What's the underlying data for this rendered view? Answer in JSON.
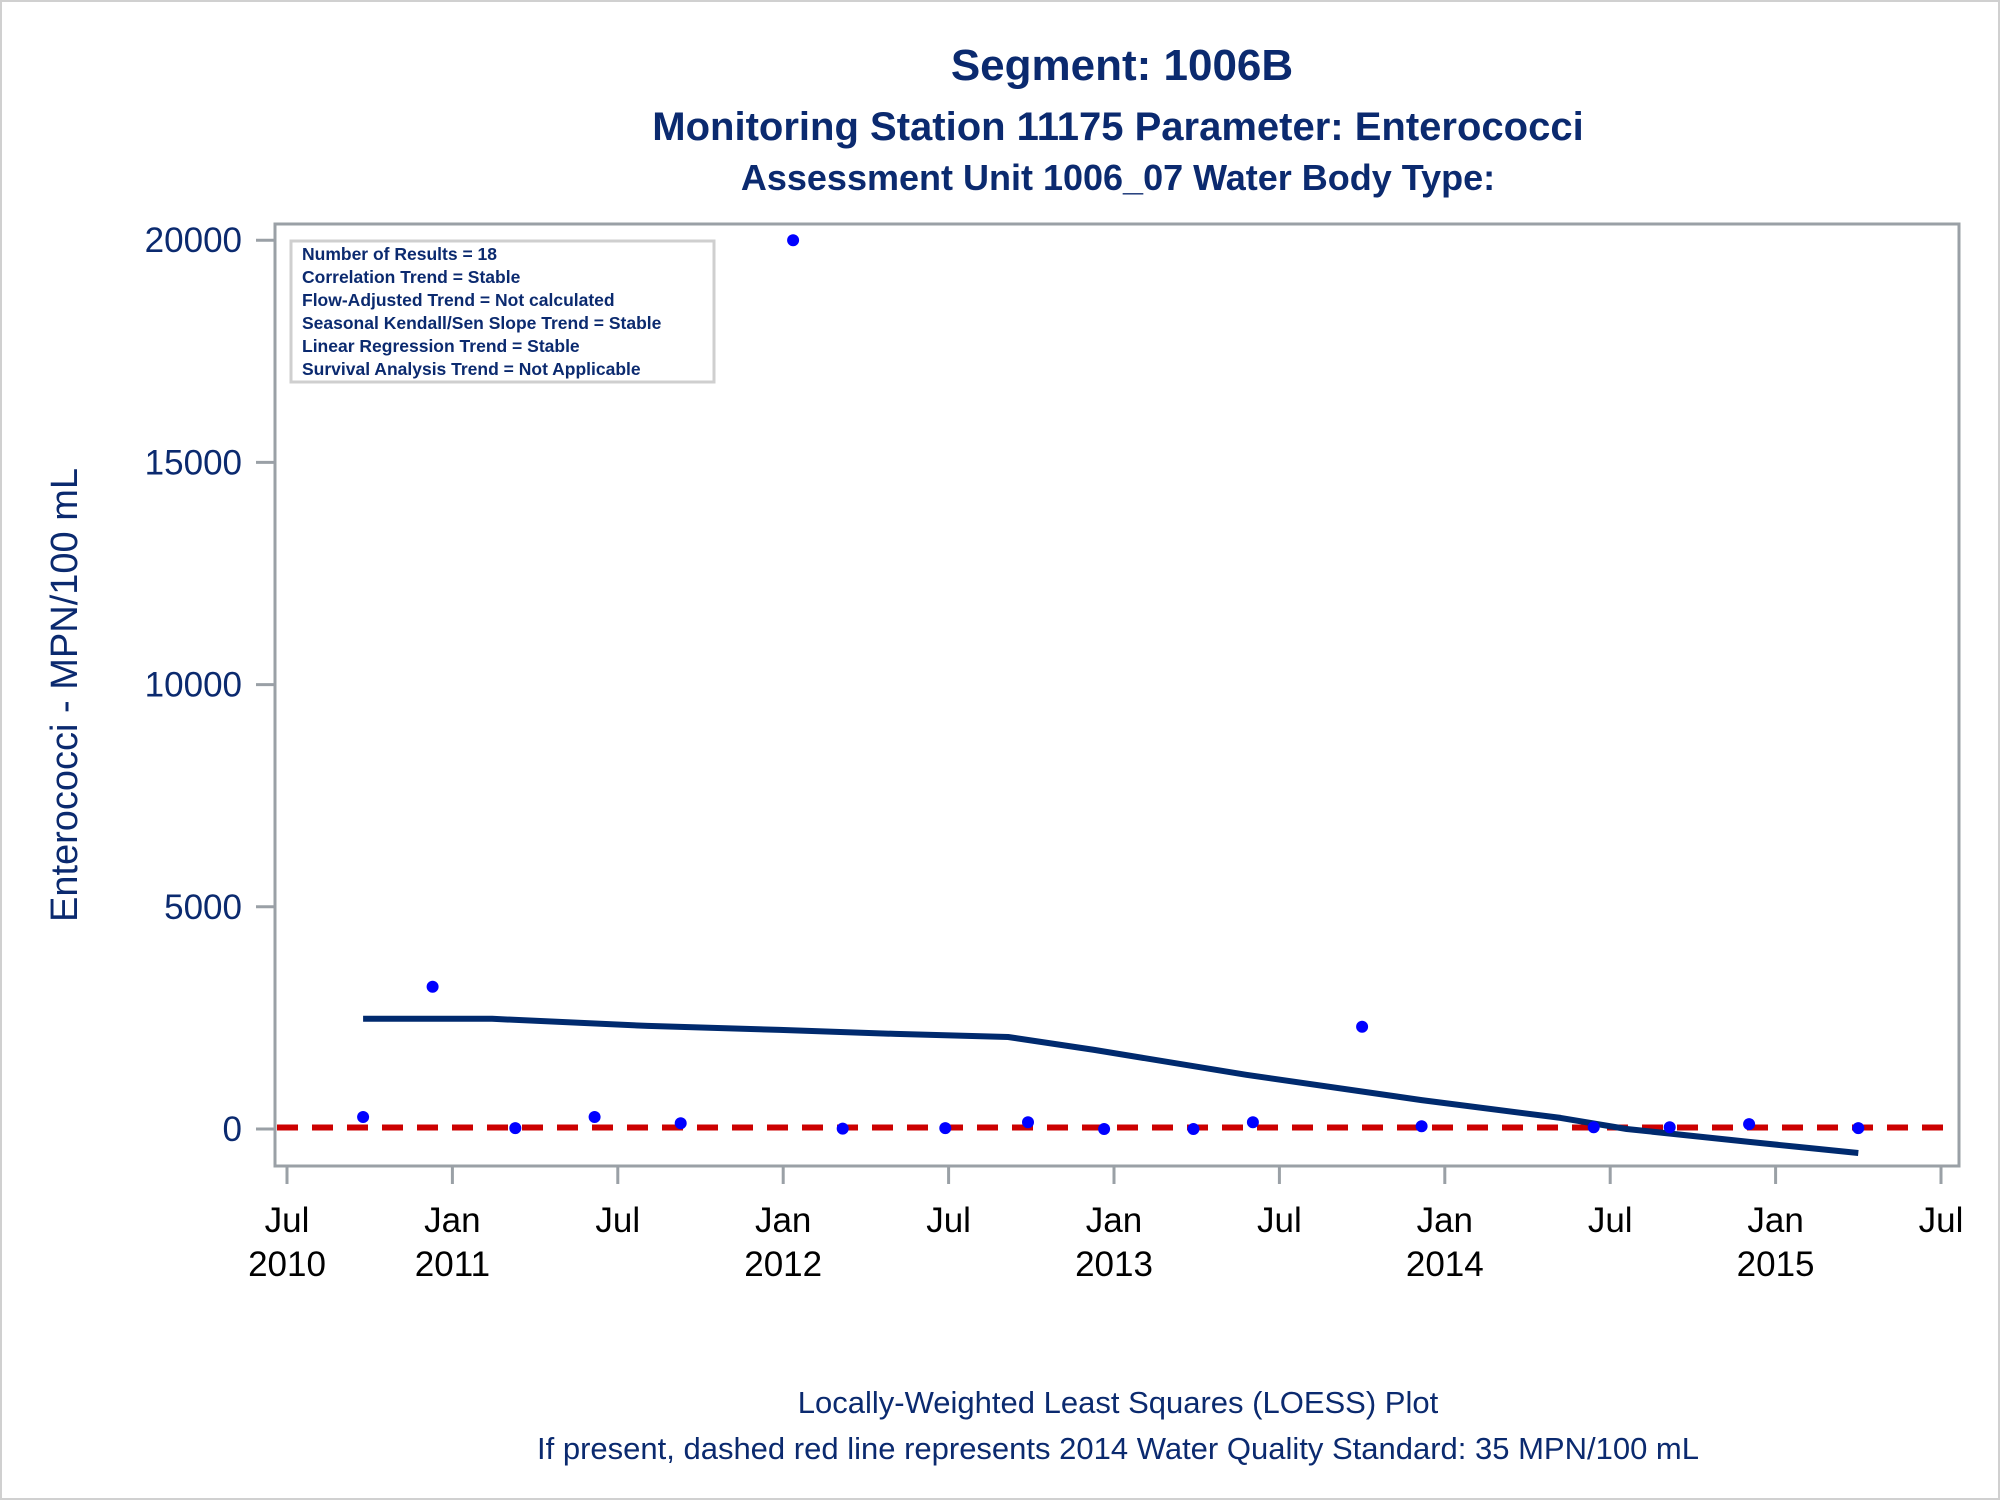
{
  "colors": {
    "text": "#0b2a6f",
    "tick_text": "#000000",
    "axis": "#9aa0a6",
    "points": "#0000ff",
    "loess": "#002a6e",
    "standard_line": "#cc0000",
    "stats_border": "#cfcfcf"
  },
  "chart_data": {
    "type": "scatter",
    "title": "Segment: 1006B",
    "subtitle": "Monitoring Station 11175 Parameter: Enterococci",
    "subtitle2": "Assessment Unit 1006_07   Water Body Type:",
    "xlabel": "",
    "ylabel": "Enterococci - MPN/100 mL",
    "ylim": [
      -700,
      20800
    ],
    "xlim": [
      2010.46,
      2015.56
    ],
    "grid": false,
    "yticks": [
      {
        "value": 0,
        "label": "0"
      },
      {
        "value": 5000,
        "label": "5000"
      },
      {
        "value": 10000,
        "label": "10000"
      },
      {
        "value": 15000,
        "label": "15000"
      },
      {
        "value": 20000,
        "label": "20000"
      }
    ],
    "xticks": [
      {
        "value": 2010.5,
        "month": "Jul",
        "year": "2010"
      },
      {
        "value": 2011.0,
        "month": "Jan",
        "year": "2011"
      },
      {
        "value": 2011.5,
        "month": "Jul",
        "year": ""
      },
      {
        "value": 2012.0,
        "month": "Jan",
        "year": "2012"
      },
      {
        "value": 2012.5,
        "month": "Jul",
        "year": ""
      },
      {
        "value": 2013.0,
        "month": "Jan",
        "year": "2013"
      },
      {
        "value": 2013.5,
        "month": "Jul",
        "year": ""
      },
      {
        "value": 2014.0,
        "month": "Jan",
        "year": "2014"
      },
      {
        "value": 2014.5,
        "month": "Jul",
        "year": ""
      },
      {
        "value": 2015.0,
        "month": "Jan",
        "year": "2015"
      },
      {
        "value": 2015.5,
        "month": "Jul",
        "year": ""
      }
    ],
    "series": [
      {
        "name": "Observations",
        "kind": "scatter",
        "points": [
          {
            "x": 2010.73,
            "y": 270
          },
          {
            "x": 2010.94,
            "y": 3200
          },
          {
            "x": 2011.19,
            "y": 20
          },
          {
            "x": 2011.43,
            "y": 270
          },
          {
            "x": 2011.69,
            "y": 130
          },
          {
            "x": 2012.03,
            "y": 20000
          },
          {
            "x": 2012.18,
            "y": 10
          },
          {
            "x": 2012.49,
            "y": 20
          },
          {
            "x": 2012.74,
            "y": 150
          },
          {
            "x": 2012.97,
            "y": 0
          },
          {
            "x": 2013.24,
            "y": 0
          },
          {
            "x": 2013.42,
            "y": 150
          },
          {
            "x": 2013.75,
            "y": 2300
          },
          {
            "x": 2013.93,
            "y": 60
          },
          {
            "x": 2014.45,
            "y": 40
          },
          {
            "x": 2014.68,
            "y": 40
          },
          {
            "x": 2014.92,
            "y": 110
          },
          {
            "x": 2015.25,
            "y": 20
          }
        ]
      },
      {
        "name": "LOESS fit",
        "kind": "line",
        "points": [
          {
            "x": 2010.73,
            "y": 2480
          },
          {
            "x": 2011.12,
            "y": 2480
          },
          {
            "x": 2011.59,
            "y": 2320
          },
          {
            "x": 2011.99,
            "y": 2230
          },
          {
            "x": 2012.34,
            "y": 2140
          },
          {
            "x": 2012.68,
            "y": 2070
          },
          {
            "x": 2012.94,
            "y": 1780
          },
          {
            "x": 2013.4,
            "y": 1220
          },
          {
            "x": 2013.93,
            "y": 650
          },
          {
            "x": 2014.35,
            "y": 250
          },
          {
            "x": 2014.55,
            "y": 0
          },
          {
            "x": 2014.92,
            "y": -290
          },
          {
            "x": 2015.25,
            "y": -540
          }
        ]
      },
      {
        "name": "2014 Water Quality Standard",
        "kind": "hline",
        "value": 35
      }
    ],
    "stats_box": {
      "placement": "top-left",
      "lines": [
        "Number of Results = 18",
        "Correlation Trend = Stable",
        "Flow-Adjusted Trend = Not calculated",
        "Seasonal Kendall/Sen Slope Trend = Stable",
        "Linear Regression Trend = Stable",
        "Survival Analysis Trend = Not Applicable"
      ]
    },
    "footnotes": [
      "Locally-Weighted Least Squares (LOESS) Plot",
      "If present, dashed red line represents 2014 Water Quality Standard: 35 MPN/100 mL"
    ]
  }
}
